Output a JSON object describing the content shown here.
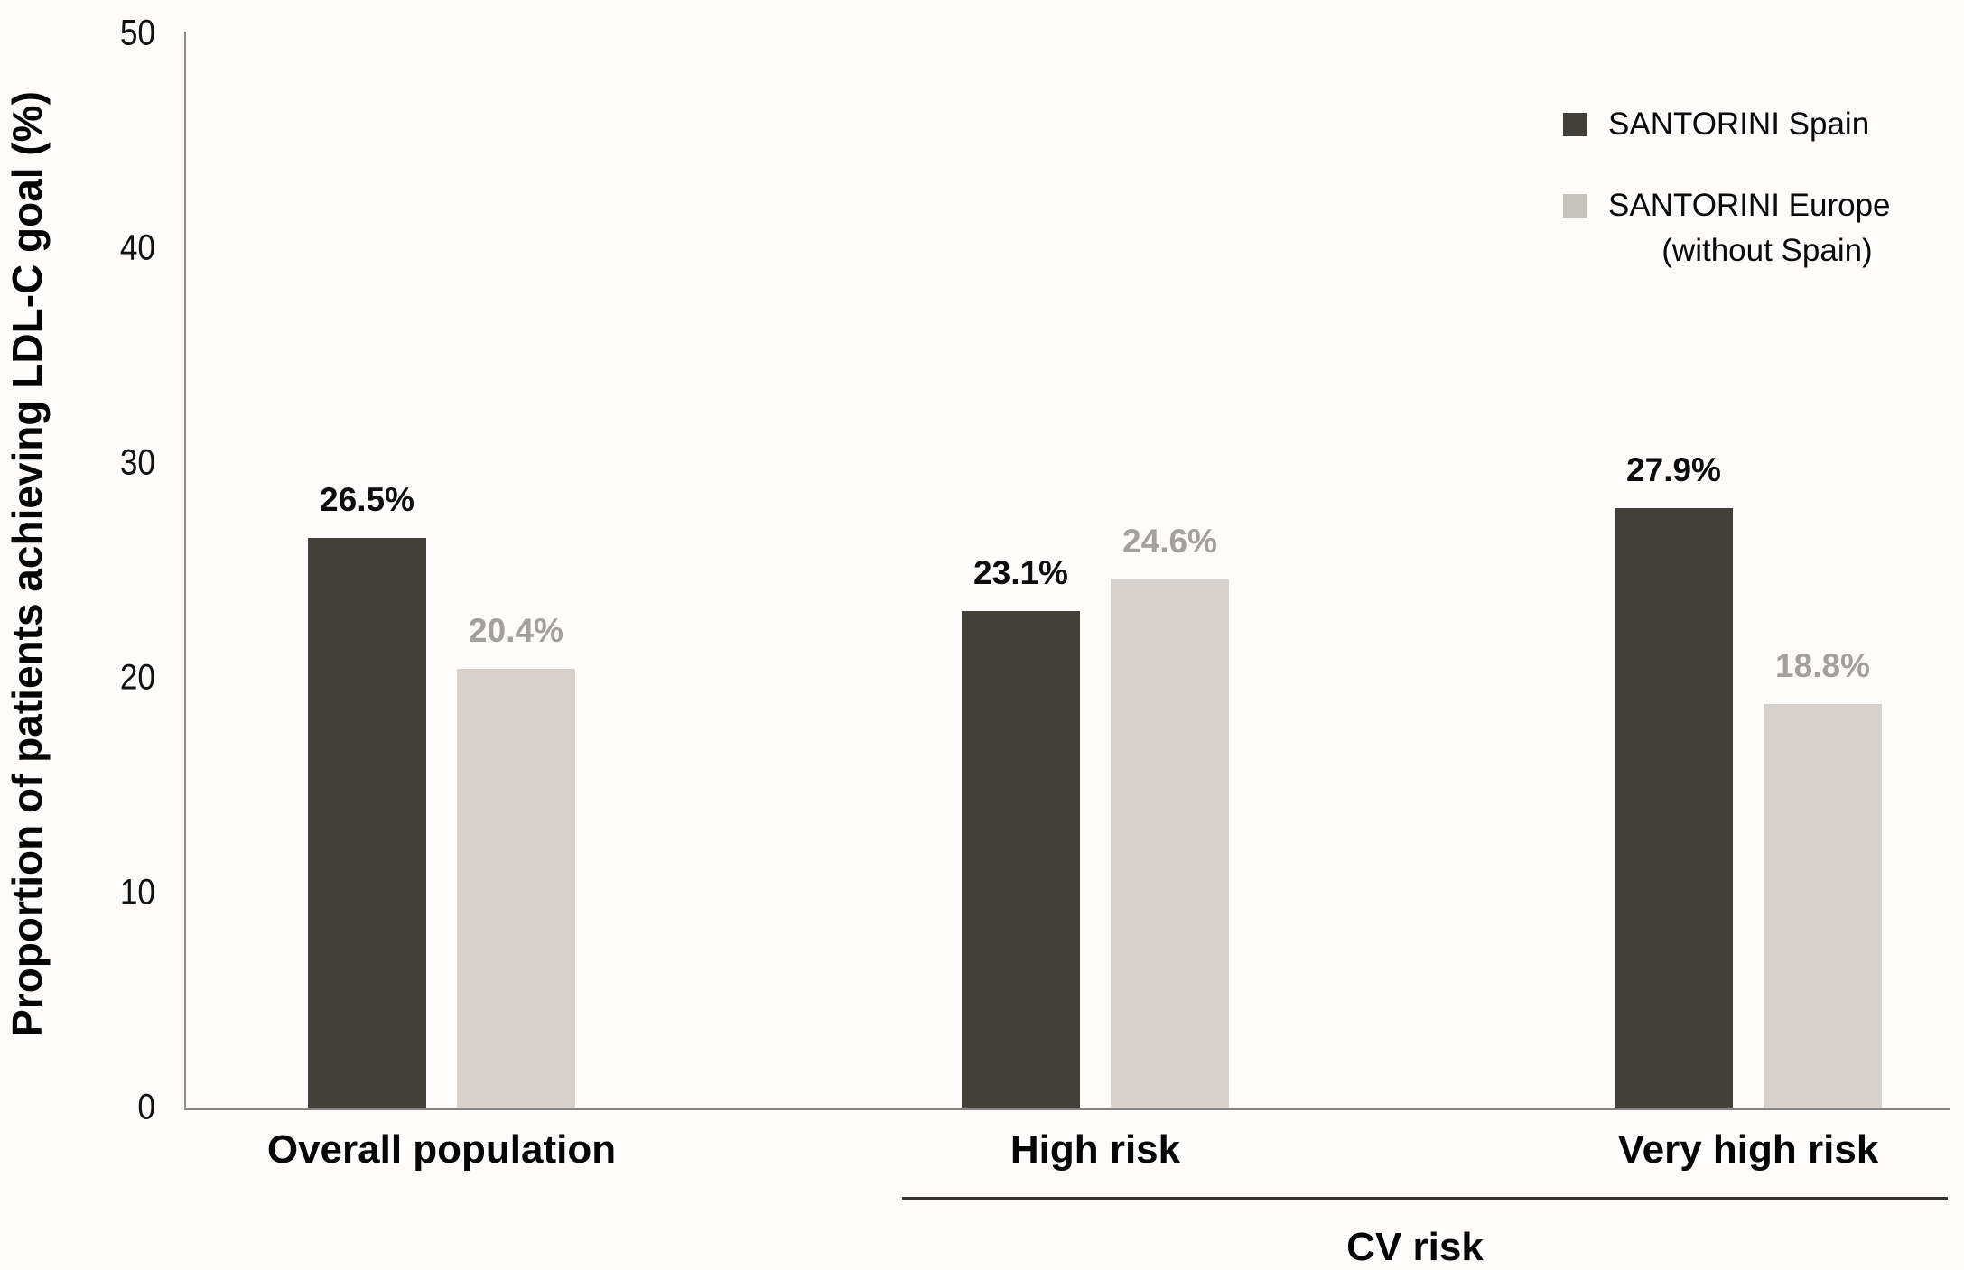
{
  "chart_data": {
    "type": "bar",
    "title": "",
    "ylabel": "Proportion of patients achieving LDL-C goal (%)",
    "xlabel": "",
    "ylim": [
      0,
      50
    ],
    "yticks": [
      {
        "value": 0,
        "label": "0"
      },
      {
        "value": 10,
        "label": "10"
      },
      {
        "value": 20,
        "label": "20"
      },
      {
        "value": 30,
        "label": "30"
      },
      {
        "value": 40,
        "label": "40"
      },
      {
        "value": 50,
        "label": "50"
      }
    ],
    "grid": "off",
    "legend_position": "top-right",
    "categories": [
      "Overall population",
      "High risk",
      "Very high risk"
    ],
    "series": [
      {
        "name": "SANTORINI Spain",
        "values": [
          26.5,
          23.1,
          27.9
        ],
        "labels": [
          "26.5%",
          "23.1%",
          "27.9%"
        ],
        "bar_color": "#433f3a",
        "label_color": "#0d0d0d"
      },
      {
        "name": "SANTORINI Europe (without Spain)",
        "values": [
          20.4,
          24.6,
          18.8
        ],
        "labels": [
          "20.4%",
          "24.6%",
          "18.8%"
        ],
        "bar_color": "#d7d1cd",
        "label_color": "#a4a09d"
      }
    ],
    "group_axis": {
      "label": "CV risk",
      "covers": [
        "High risk",
        "Very high risk"
      ]
    }
  },
  "legend": {
    "items": [
      {
        "swatch_color": "#433f3a",
        "lines": [
          "SANTORINI Spain"
        ]
      },
      {
        "swatch_color": "#c6c2be",
        "lines": [
          "SANTORINI Europe",
          "(without Spain)"
        ]
      }
    ]
  },
  "colors": {
    "axis_line": "#8d8b88",
    "baseline": "#868482",
    "bracket_line": "#33322f",
    "background": "#fdfcfb"
  }
}
